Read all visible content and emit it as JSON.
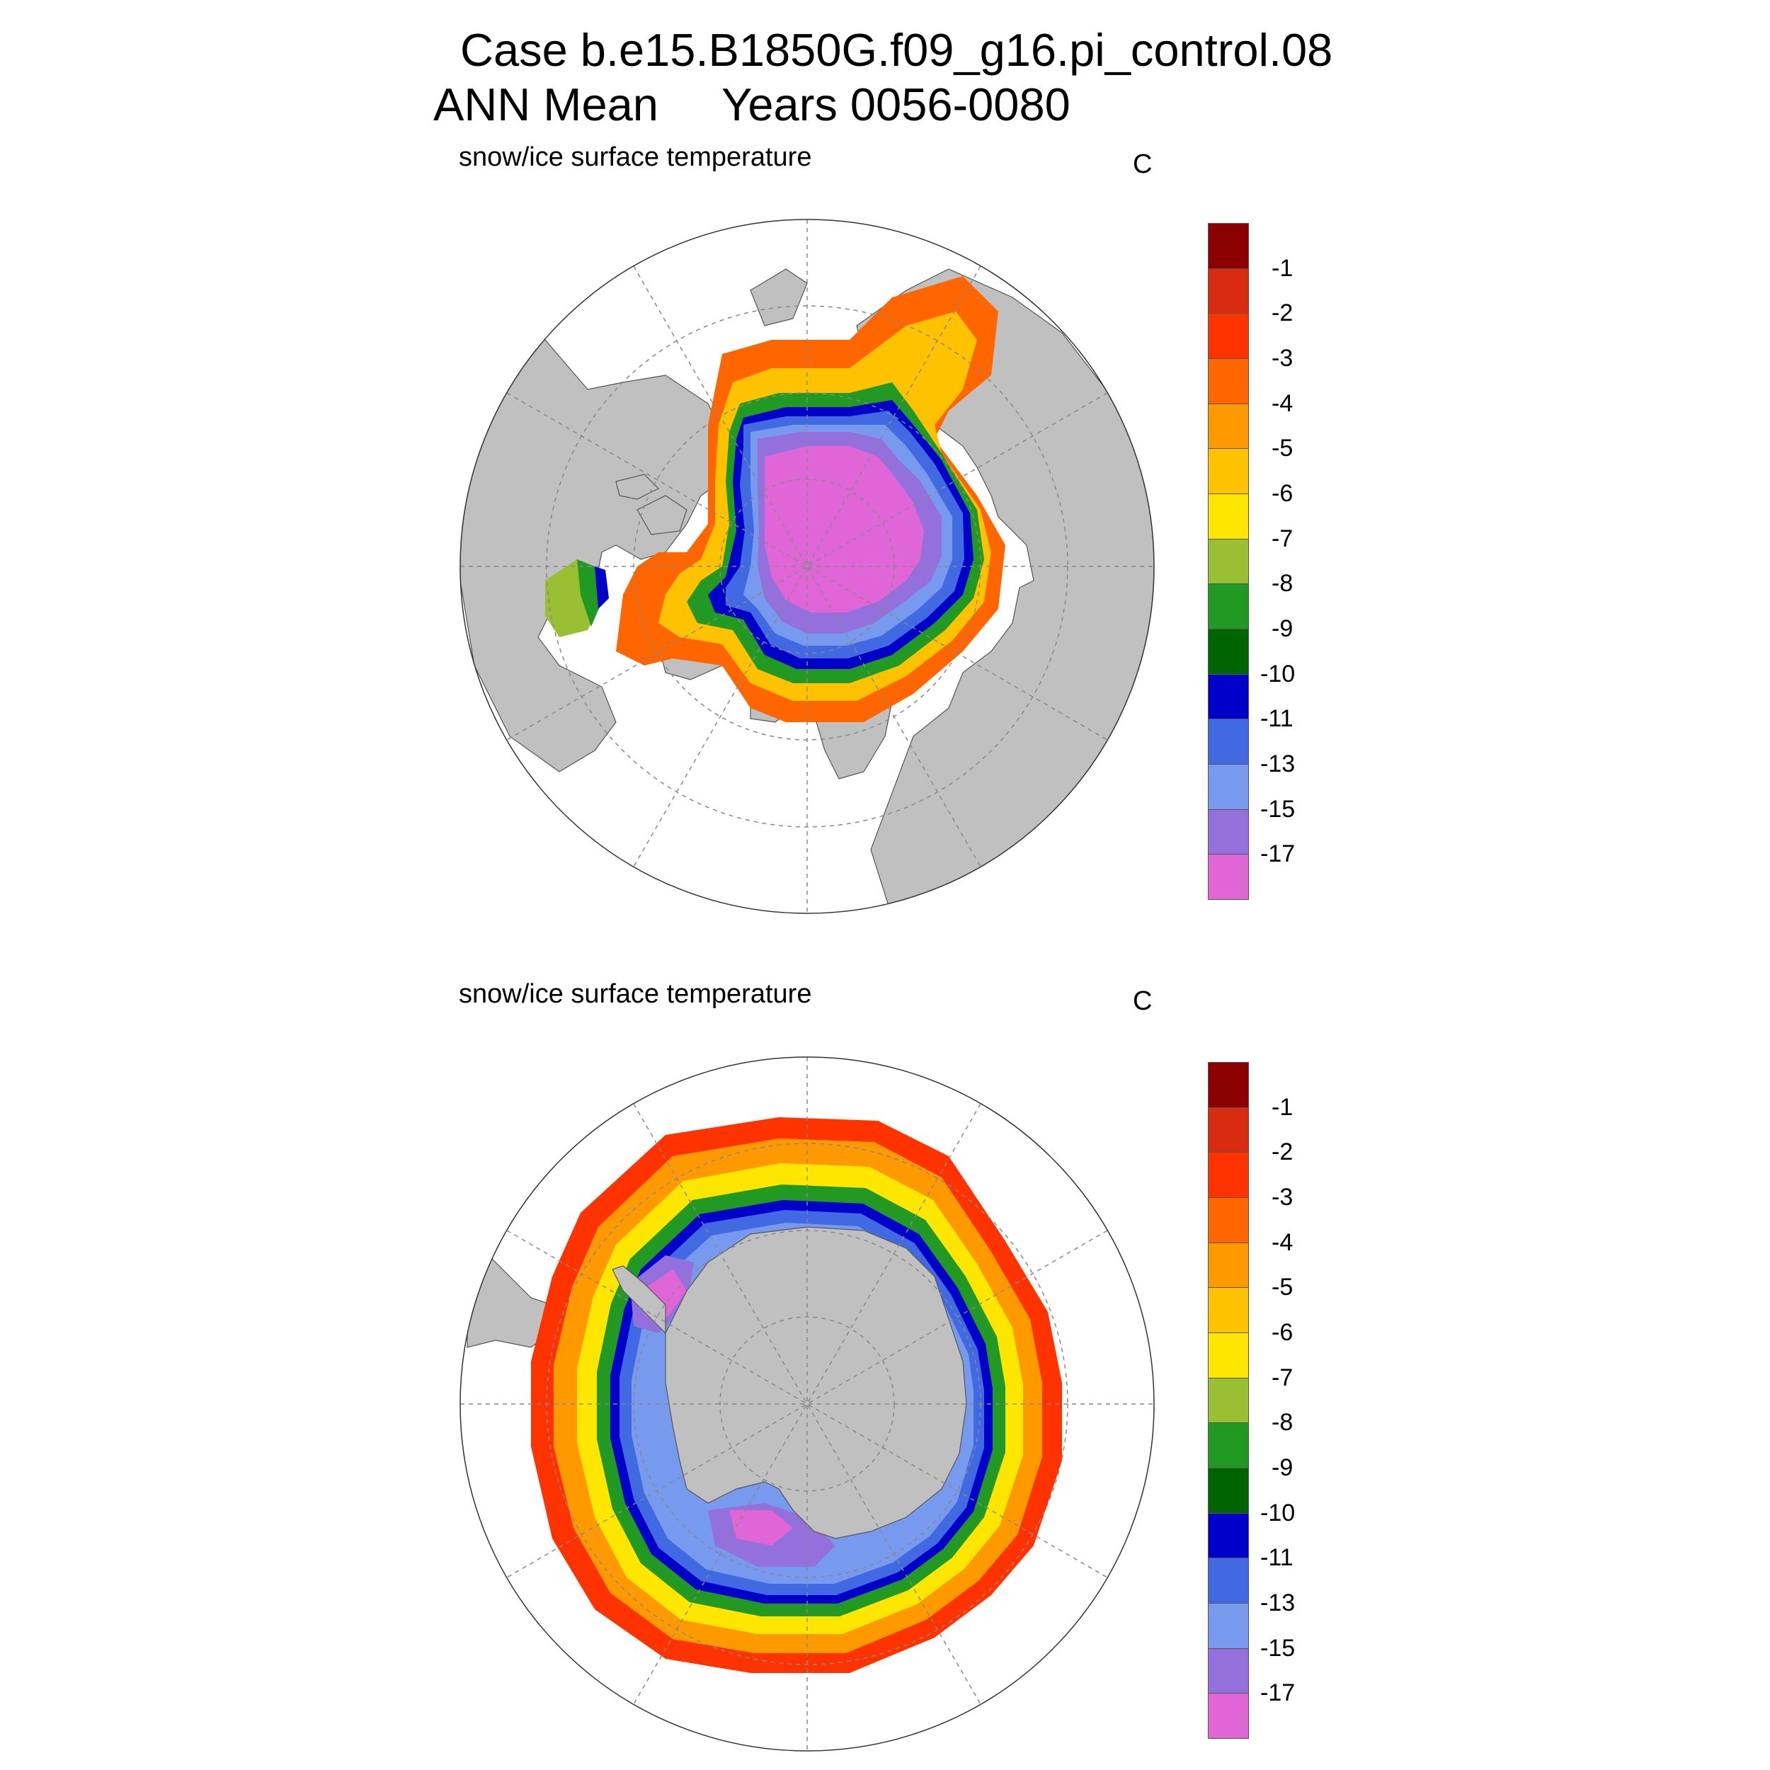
{
  "figure": {
    "title_line1": "Case b.e15.B1850G.f09_g16.pi_control.08",
    "title_line2": "ANN Mean     Years 0056-0080"
  },
  "panels": [
    {
      "id": "north",
      "title": "snow/ice surface temperature",
      "units": "C",
      "hemisphere": "north"
    },
    {
      "id": "south",
      "title": "snow/ice surface temperature",
      "units": "C",
      "hemisphere": "south"
    }
  ],
  "colorbar": {
    "labels": [
      "-1",
      "-2",
      "-3",
      "-4",
      "-5",
      "-6",
      "-7",
      "-8",
      "-9",
      "-10",
      "-11",
      "-13",
      "-15",
      "-17"
    ],
    "colors": [
      "#8b0000",
      "#d92b0f",
      "#ff3300",
      "#ff6600",
      "#ff9900",
      "#ffc200",
      "#ffe600",
      "#99bf33",
      "#229922",
      "#006400",
      "#0000c8",
      "#4169e1",
      "#7799ee",
      "#9370db",
      "#e066d8"
    ]
  },
  "colors": {
    "land": "#c0c0c0",
    "ocean": "#ffffff",
    "grid": "#888888"
  }
}
